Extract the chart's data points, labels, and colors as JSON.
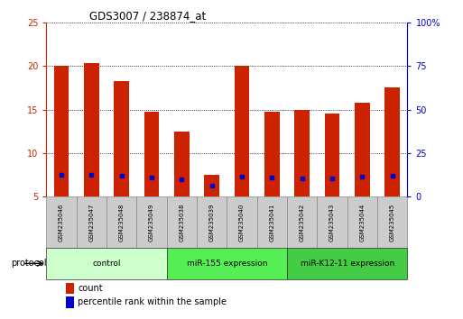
{
  "title": "GDS3007 / 238874_at",
  "samples": [
    "GSM235046",
    "GSM235047",
    "GSM235048",
    "GSM235049",
    "GSM235038",
    "GSM235039",
    "GSM235040",
    "GSM235041",
    "GSM235042",
    "GSM235043",
    "GSM235044",
    "GSM235045"
  ],
  "count_values": [
    20.0,
    20.3,
    18.3,
    14.8,
    12.5,
    7.5,
    20.0,
    14.8,
    15.0,
    14.5,
    15.8,
    17.5
  ],
  "percentile_values": [
    12.8,
    12.8,
    12.0,
    11.2,
    10.2,
    6.6,
    11.8,
    11.0,
    10.8,
    10.6,
    11.5,
    12.0
  ],
  "bar_color": "#CC2200",
  "pct_color": "#0000CC",
  "ylim_left": [
    5,
    25
  ],
  "ylim_right": [
    0,
    100
  ],
  "yticks_left": [
    5,
    10,
    15,
    20,
    25
  ],
  "yticks_right": [
    0,
    25,
    50,
    75,
    100
  ],
  "yticklabels_right": [
    "0",
    "25",
    "50",
    "75",
    "100%"
  ],
  "groups": [
    {
      "label": "control",
      "start": 0,
      "end": 4,
      "color": "#CCFFCC"
    },
    {
      "label": "miR-155 expression",
      "start": 4,
      "end": 8,
      "color": "#55EE55"
    },
    {
      "label": "miR-K12-11 expression",
      "start": 8,
      "end": 12,
      "color": "#44CC44"
    }
  ],
  "protocol_label": "protocol",
  "legend_count": "count",
  "legend_pct": "percentile rank within the sample",
  "bar_color_legend": "#CC2200",
  "pct_color_legend": "#0000CC",
  "tick_color_left": "#CC2200",
  "tick_color_right": "#0000CC",
  "bar_width": 0.5,
  "sample_box_color": "#CCCCCC",
  "sample_box_edge": "#888888"
}
